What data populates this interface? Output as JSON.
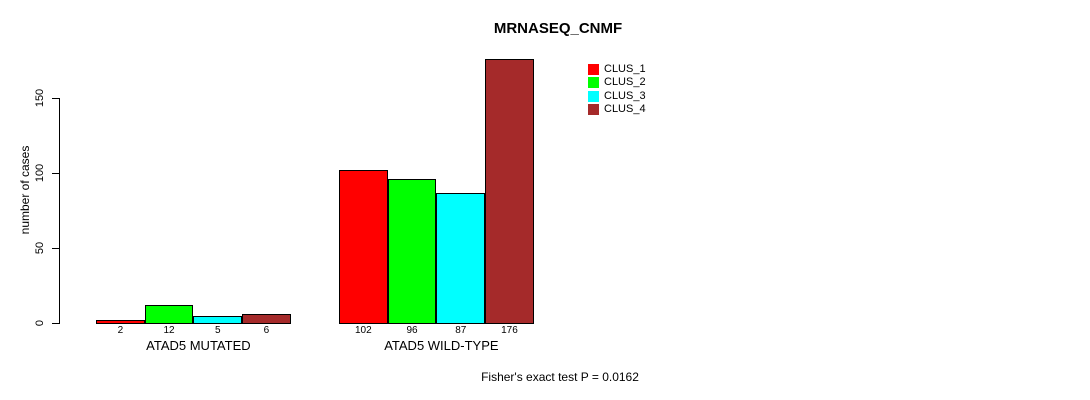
{
  "chart_data": {
    "type": "bar",
    "title": "MRNASEQ_CNMF",
    "ylabel": "number of cases",
    "xlabel": "",
    "categories": [
      "ATAD5 MUTATED",
      "ATAD5 WILD-TYPE"
    ],
    "series": [
      {
        "name": "CLUS_1",
        "color": "#FF0000",
        "values": [
          2,
          102
        ]
      },
      {
        "name": "CLUS_2",
        "color": "#00FF00",
        "values": [
          12,
          96
        ]
      },
      {
        "name": "CLUS_3",
        "color": "#00FFFF",
        "values": [
          5,
          87
        ]
      },
      {
        "name": "CLUS_4",
        "color": "#A52A2A",
        "values": [
          6,
          176
        ]
      }
    ],
    "bar_value_labels": [
      [
        "2",
        "12",
        "5",
        "6"
      ],
      [
        "102",
        "96",
        "87",
        "176"
      ]
    ],
    "yticks": [
      0,
      50,
      100,
      150
    ],
    "ylim": [
      0,
      150
    ],
    "grid": false,
    "legend_position": "upper-middle",
    "annotation": "Fisher's exact test P = 0.0162",
    "colors": {
      "axis": "#000000",
      "text": "#000000",
      "background": "#FFFFFF"
    }
  }
}
